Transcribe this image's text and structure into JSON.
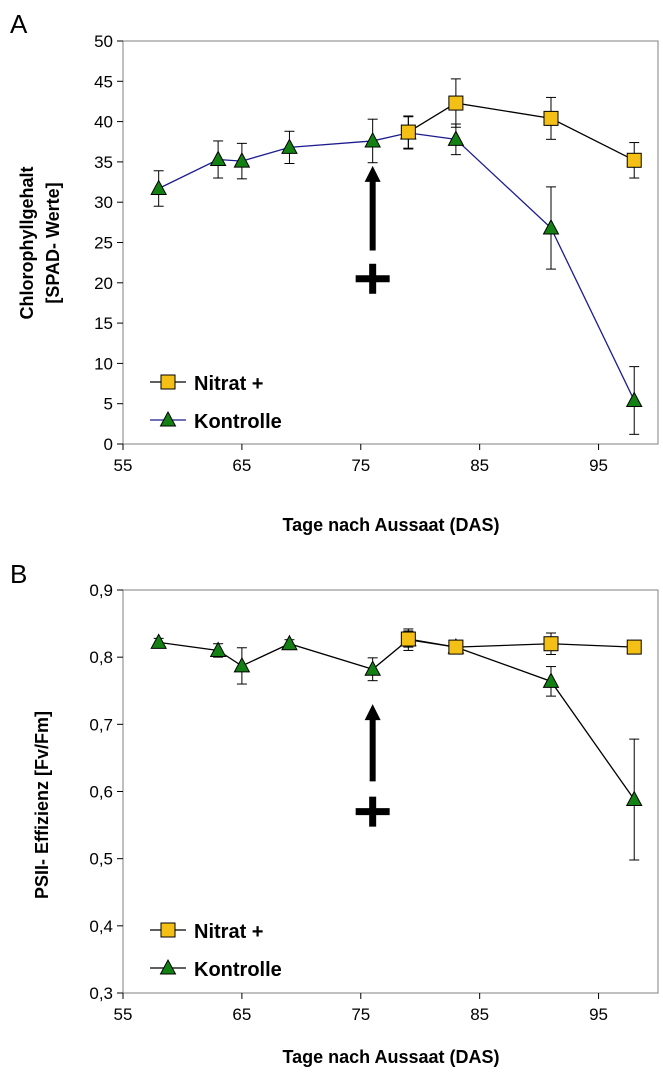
{
  "chart_data": [
    {
      "type": "line",
      "panel_label": "A",
      "xlabel": "Tage nach Aussaat (DAS)",
      "ylabel_line1": "Chlorophyllgehalt",
      "ylabel_line2": "[SPAD- Werte]",
      "xlim": [
        55,
        100
      ],
      "ylim": [
        0,
        50
      ],
      "xticks": [
        55,
        65,
        75,
        85,
        95
      ],
      "xtick_labels": [
        "55",
        "65",
        "75",
        "85",
        "95"
      ],
      "yticks": [
        0,
        5,
        10,
        15,
        20,
        25,
        30,
        35,
        40,
        45,
        50
      ],
      "ytick_labels": [
        "0",
        "5",
        "10",
        "15",
        "20",
        "25",
        "30",
        "35",
        "40",
        "45",
        "50"
      ],
      "grid": false,
      "legend_position": "bottom-left",
      "annotation": {
        "symbol": "+",
        "x": 76,
        "arrow_from": 24,
        "arrow_to": 34.5,
        "plus_y": 20.5
      },
      "series": [
        {
          "name": "Nitrat +",
          "marker": "square",
          "color": "#f5c016",
          "line_color": "#000000",
          "x": [
            79,
            83,
            91,
            98
          ],
          "y": [
            38.7,
            42.3,
            40.4,
            35.2
          ],
          "err": [
            2.0,
            3.0,
            2.6,
            2.2
          ]
        },
        {
          "name": "Kontrolle",
          "marker": "triangle",
          "color": "#138013",
          "line_color": "#1c1c8f",
          "x": [
            58,
            63,
            65,
            69,
            76,
            79,
            83,
            91,
            98
          ],
          "y": [
            31.7,
            35.3,
            35.1,
            36.8,
            37.6,
            38.6,
            37.8,
            26.8,
            5.4
          ],
          "err": [
            2.2,
            2.3,
            2.2,
            2.0,
            2.7,
            2.0,
            1.9,
            5.1,
            4.2
          ]
        }
      ]
    },
    {
      "type": "line",
      "panel_label": "B",
      "xlabel": "Tage nach Aussaat (DAS)",
      "ylabel": "PSII- Effizienz [Fv/Fm]",
      "xlim": [
        55,
        100
      ],
      "ylim": [
        0.3,
        0.9
      ],
      "xticks": [
        55,
        65,
        75,
        85,
        95
      ],
      "xtick_labels": [
        "55",
        "65",
        "75",
        "85",
        "95"
      ],
      "yticks": [
        0.3,
        0.4,
        0.5,
        0.6,
        0.7,
        0.8,
        0.9
      ],
      "ytick_labels": [
        "0,3",
        "0,4",
        "0,5",
        "0,6",
        "0,7",
        "0,8",
        "0,9"
      ],
      "grid": false,
      "legend_position": "bottom-left",
      "annotation": {
        "symbol": "+",
        "x": 76,
        "arrow_from": 0.615,
        "arrow_to": 0.73,
        "plus_y": 0.57
      },
      "series": [
        {
          "name": "Nitrat +",
          "marker": "square",
          "color": "#f5c016",
          "line_color": "#000000",
          "x": [
            79,
            83,
            91,
            98
          ],
          "y": [
            0.827,
            0.815,
            0.82,
            0.815
          ],
          "err": [
            0.012,
            0.008,
            0.016,
            0.006
          ]
        },
        {
          "name": "Kontrolle",
          "marker": "triangle",
          "color": "#138013",
          "line_color": "#000000",
          "x": [
            58,
            63,
            65,
            69,
            76,
            79,
            83,
            91,
            98
          ],
          "y": [
            0.822,
            0.81,
            0.787,
            0.82,
            0.782,
            0.826,
            0.815,
            0.764,
            0.588
          ],
          "err": [
            0.006,
            0.01,
            0.027,
            0.006,
            0.017,
            0.016,
            0.006,
            0.022,
            0.09
          ]
        }
      ]
    }
  ]
}
